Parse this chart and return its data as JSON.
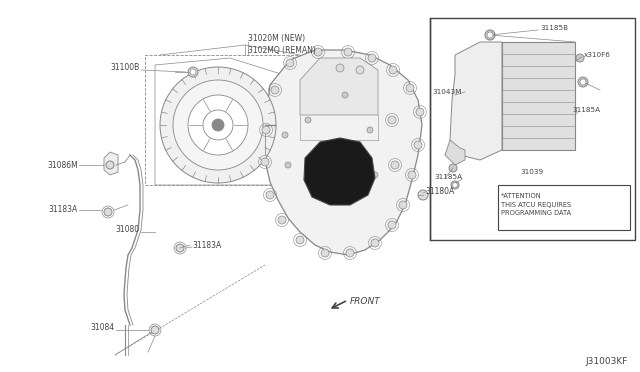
{
  "bg_color": "#ffffff",
  "lc": "#888888",
  "dc": "#444444",
  "fig_width": 6.4,
  "fig_height": 3.72,
  "dpi": 100,
  "diagram_code": "J31003KF",
  "label_NEW": "31020M (NEW)",
  "label_REMAN": "3102MQ (REMAN)",
  "attn_text": "*ATTENTION\nTHIS ATCU REQUIRES\nPROGRAMMING DATA"
}
